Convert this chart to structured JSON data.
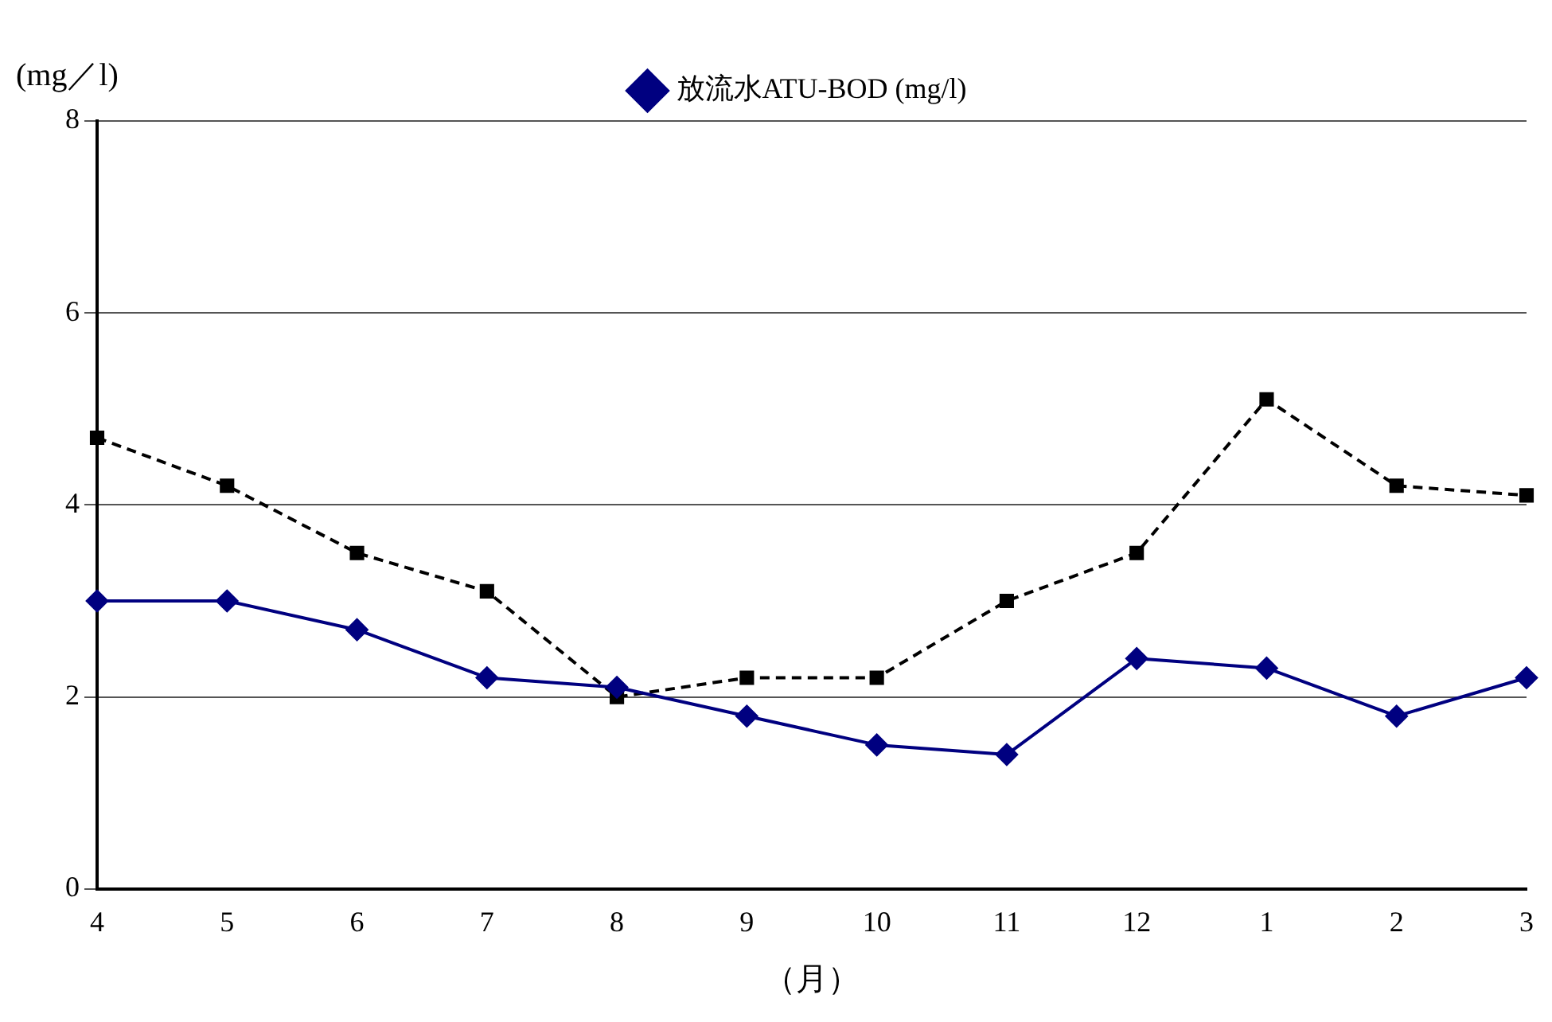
{
  "chart_data": {
    "type": "line",
    "ylabel": "(mg／l)",
    "xlabel": "（月）",
    "categories": [
      "4",
      "5",
      "6",
      "7",
      "8",
      "9",
      "10",
      "11",
      "12",
      "1",
      "2",
      "3"
    ],
    "series": [
      {
        "name": "放流水ATU-BOD (mg/l)",
        "color": "#000080",
        "marker": "diamond",
        "line_style": "solid",
        "values": [
          3.0,
          3.0,
          2.7,
          2.2,
          2.1,
          1.8,
          1.5,
          1.4,
          2.4,
          2.3,
          1.8,
          2.2
        ]
      },
      {
        "color": "#000000",
        "marker": "square",
        "line_style": "dashed",
        "values": [
          4.7,
          4.2,
          3.5,
          3.1,
          2.0,
          2.2,
          2.2,
          3.0,
          3.5,
          5.1,
          4.2,
          4.1
        ]
      }
    ],
    "ylim": [
      0,
      8
    ],
    "yticks": [
      0,
      2,
      4,
      6,
      8
    ],
    "grid": "y",
    "legend": "top"
  }
}
